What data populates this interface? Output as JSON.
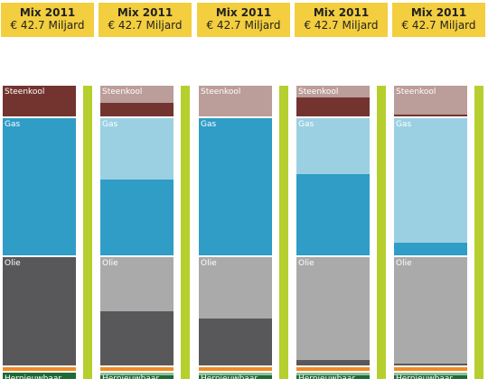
{
  "chart_data": {
    "type": "bar",
    "stacked": true,
    "panels": [
      {
        "title": "Mix 2011",
        "subtitle": "€ 42.7 Miljard"
      },
      {
        "title": "Mix 2011",
        "subtitle": "€ 42.7 Miljard"
      },
      {
        "title": "Mix 2011",
        "subtitle": "€ 42.7 Miljard"
      },
      {
        "title": "Mix 2011",
        "subtitle": "€ 42.7 Miljard"
      },
      {
        "title": "Mix 2011",
        "subtitle": "€ 42.7 Miljard"
      }
    ],
    "categories": [
      "Steenkool",
      "Gas",
      "Olie",
      "Hernieuwbaar"
    ],
    "segment_share": [
      0.104,
      0.468,
      0.368,
      0.06
    ],
    "orange_share": 0.012,
    "filled_fraction": [
      [
        1.0,
        1.0,
        1.0,
        1.0
      ],
      [
        0.45,
        0.55,
        0.5,
        0.62
      ],
      [
        0.0,
        1.0,
        0.43,
        0.5
      ],
      [
        0.62,
        0.59,
        0.05,
        0.62
      ],
      [
        0.07,
        0.09,
        0.02,
        0.62
      ]
    ],
    "colors": {
      "Steenkool": {
        "filled": "#73342f",
        "light": "#bb9d99"
      },
      "Gas": {
        "filled": "#2f9dc6",
        "light": "#9bd0e2"
      },
      "Olie": {
        "filled": "#58585a",
        "light": "#aaaaaa"
      },
      "Hernieuwbaar": {
        "filled": "#216a37",
        "light": "#8fbf9a"
      },
      "orange": {
        "filled": "#f08a24",
        "light": "#f5c59a"
      },
      "side_bar": "#b6cf2f"
    }
  }
}
